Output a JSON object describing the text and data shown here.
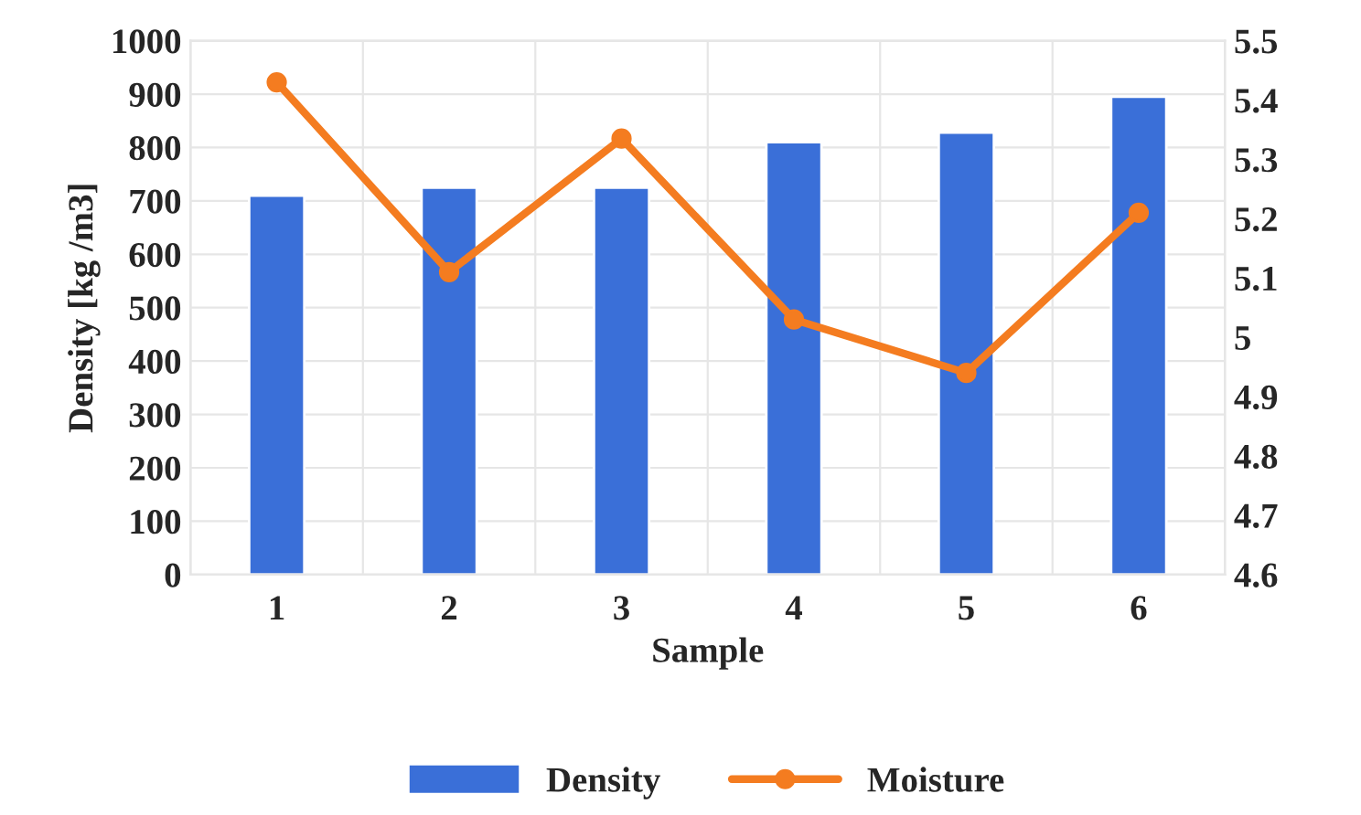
{
  "chart_data": {
    "type": "bar",
    "xlabel": "Sample",
    "ylabel": "Density [kg /m3]",
    "categories": [
      "1",
      "2",
      "3",
      "4",
      "5",
      "6"
    ],
    "series": [
      {
        "name": "Density",
        "color": "#3a6fd8",
        "values": [
          710,
          725,
          725,
          810,
          828,
          895
        ]
      },
      {
        "name": "Moisture",
        "type": "line",
        "axis": "y2",
        "color": "#f47c20",
        "marker": "circle",
        "values": [
          5.43,
          5.11,
          5.335,
          5.03,
          4.94,
          5.21
        ]
      }
    ],
    "ylim": [
      0,
      1000
    ],
    "yticks": [
      0,
      100,
      200,
      300,
      400,
      500,
      600,
      700,
      800,
      900,
      1000
    ],
    "y2lim": [
      4.6,
      5.5
    ],
    "y2ticks": [
      4.6,
      4.7,
      4.8,
      4.9,
      {
        "value": 5.0,
        "label": "5"
      },
      5.1,
      5.2,
      5.3,
      5.4,
      5.5
    ],
    "grid": true,
    "legend": "bottom"
  }
}
